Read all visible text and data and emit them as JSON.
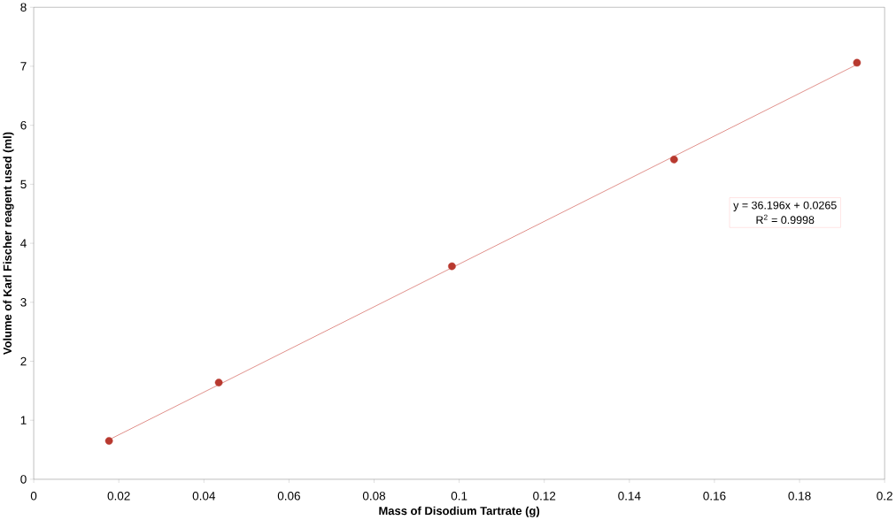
{
  "chart_data": {
    "type": "scatter",
    "xlabel": "Mass of Disodium Tartrate (g)",
    "ylabel": "Volume of Karl Fischer reagent used (ml)",
    "xlim": [
      0,
      0.2
    ],
    "ylim": [
      0,
      8
    ],
    "xticks": [
      0,
      0.02,
      0.04,
      0.06,
      0.08,
      0.1,
      0.12,
      0.14,
      0.16,
      0.18,
      0.2
    ],
    "yticks": [
      0,
      1,
      2,
      3,
      4,
      5,
      6,
      7,
      8
    ],
    "grid": false,
    "series": [
      {
        "type": "line",
        "marker": "none",
        "color": "#d97a74",
        "x": [
          0.0177,
          0.1935
        ],
        "values": [
          0.67,
          7.03
        ]
      },
      {
        "marker": "circle",
        "color": "#b8392f",
        "x": [
          0.0177,
          0.0435,
          0.0983,
          0.1505,
          0.1935
        ],
        "values": [
          0.65,
          1.64,
          3.61,
          5.42,
          7.06
        ]
      }
    ],
    "annotations": [
      "y = 36.196x + 0.0265",
      "R$^{2}$ = 0.9998"
    ]
  }
}
